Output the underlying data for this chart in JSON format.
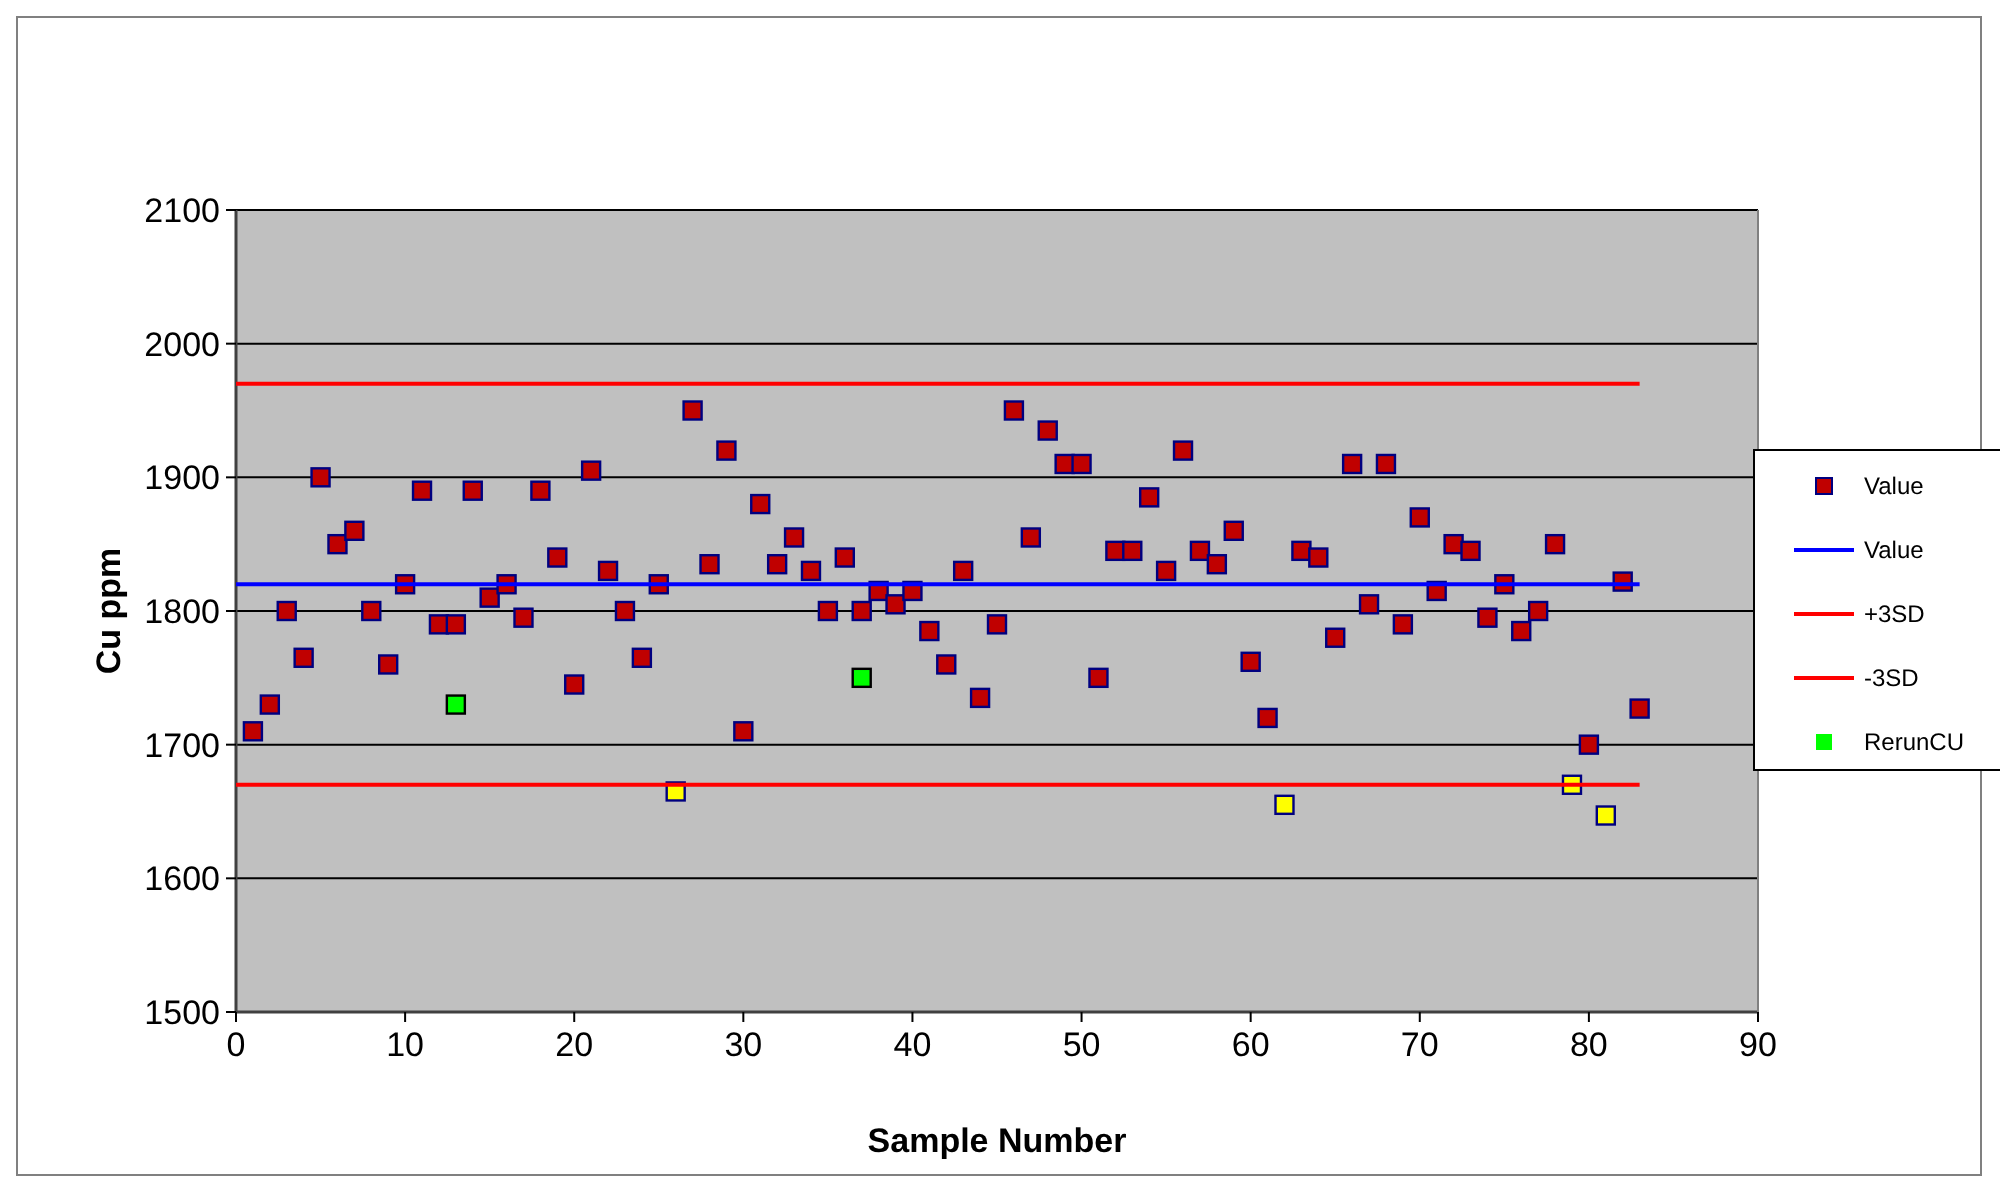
{
  "chart_data": {
    "type": "scatter",
    "xlabel": "Sample Number",
    "ylabel": "Cu ppm",
    "xlim": [
      0,
      90
    ],
    "xticks": [
      0,
      10,
      20,
      30,
      40,
      50,
      60,
      70,
      80,
      90
    ],
    "ylim": [
      1500,
      2100
    ],
    "yticks": [
      1500,
      1600,
      1700,
      1800,
      1900,
      2000,
      2100
    ],
    "grid": "y",
    "legend": "right",
    "series": [
      {
        "name": "Value",
        "type": "scatter",
        "marker": "square",
        "color": "#c00000",
        "x": [
          1,
          2,
          3,
          4,
          5,
          6,
          7,
          8,
          9,
          10,
          11,
          12,
          13,
          14,
          15,
          16,
          17,
          18,
          19,
          20,
          21,
          22,
          23,
          24,
          25,
          26,
          27,
          28,
          29,
          30,
          31,
          32,
          33,
          34,
          35,
          36,
          37,
          38,
          39,
          40,
          41,
          42,
          43,
          44,
          45,
          46,
          47,
          48,
          49,
          50,
          51,
          52,
          53,
          54,
          55,
          56,
          57,
          58,
          59,
          60,
          61,
          62,
          63,
          64,
          65,
          66,
          67,
          68,
          69,
          70,
          71,
          72,
          73,
          74,
          75,
          76,
          77,
          78,
          79,
          80,
          81,
          82,
          83
        ],
        "values": [
          1710,
          1730,
          1800,
          1765,
          1900,
          1850,
          1860,
          1800,
          1760,
          1820,
          1890,
          1790,
          1790,
          1890,
          1810,
          1820,
          1795,
          1890,
          1840,
          1745,
          1905,
          1830,
          1800,
          1765,
          1820,
          1665,
          1950,
          1835,
          1920,
          1710,
          1880,
          1835,
          1855,
          1830,
          1800,
          1840,
          1800,
          1815,
          1805,
          1815,
          1785,
          1760,
          1830,
          1735,
          1790,
          1950,
          1855,
          1935,
          1910,
          1910,
          1750,
          1845,
          1845,
          1885,
          1830,
          1920,
          1845,
          1835,
          1860,
          1762,
          1720,
          1655,
          1845,
          1840,
          1780,
          1910,
          1805,
          1910,
          1790,
          1870,
          1815,
          1850,
          1845,
          1795,
          1820,
          1785,
          1800,
          1850,
          1670,
          1700,
          1647,
          1822,
          1727
        ],
        "colors": [
          "#c00000",
          "#c00000",
          "#c00000",
          "#c00000",
          "#c00000",
          "#c00000",
          "#c00000",
          "#c00000",
          "#c00000",
          "#c00000",
          "#c00000",
          "#c00000",
          "#c00000",
          "#c00000",
          "#c00000",
          "#c00000",
          "#c00000",
          "#c00000",
          "#c00000",
          "#c00000",
          "#c00000",
          "#c00000",
          "#c00000",
          "#c00000",
          "#c00000",
          "#ffff00",
          "#c00000",
          "#c00000",
          "#c00000",
          "#c00000",
          "#c00000",
          "#c00000",
          "#c00000",
          "#c00000",
          "#c00000",
          "#c00000",
          "#c00000",
          "#c00000",
          "#c00000",
          "#c00000",
          "#c00000",
          "#c00000",
          "#c00000",
          "#c00000",
          "#c00000",
          "#c00000",
          "#c00000",
          "#c00000",
          "#c00000",
          "#c00000",
          "#c00000",
          "#c00000",
          "#c00000",
          "#c00000",
          "#c00000",
          "#c00000",
          "#c00000",
          "#c00000",
          "#c00000",
          "#c00000",
          "#c00000",
          "#ffff00",
          "#c00000",
          "#c00000",
          "#c00000",
          "#c00000",
          "#c00000",
          "#c00000",
          "#c00000",
          "#c00000",
          "#c00000",
          "#c00000",
          "#c00000",
          "#c00000",
          "#c00000",
          "#c00000",
          "#c00000",
          "#c00000",
          "#ffff00",
          "#c00000",
          "#ffff00",
          "#c00000",
          "#c00000"
        ]
      },
      {
        "name": "Value",
        "type": "line",
        "marker": "none",
        "color": "#0000ff",
        "x": [
          0,
          83
        ],
        "values": [
          1820,
          1820
        ]
      },
      {
        "name": "+3SD",
        "type": "line",
        "marker": "none",
        "color": "#ff0000",
        "x": [
          0,
          83
        ],
        "values": [
          1970,
          1970
        ]
      },
      {
        "name": "-3SD",
        "type": "line",
        "marker": "none",
        "color": "#ff0000",
        "x": [
          0,
          83
        ],
        "values": [
          1670,
          1670
        ]
      },
      {
        "name": "RerunCU",
        "type": "scatter",
        "marker": "square",
        "color": "#00ff00",
        "x": [
          13,
          37
        ],
        "values": [
          1730,
          1750
        ]
      }
    ]
  }
}
